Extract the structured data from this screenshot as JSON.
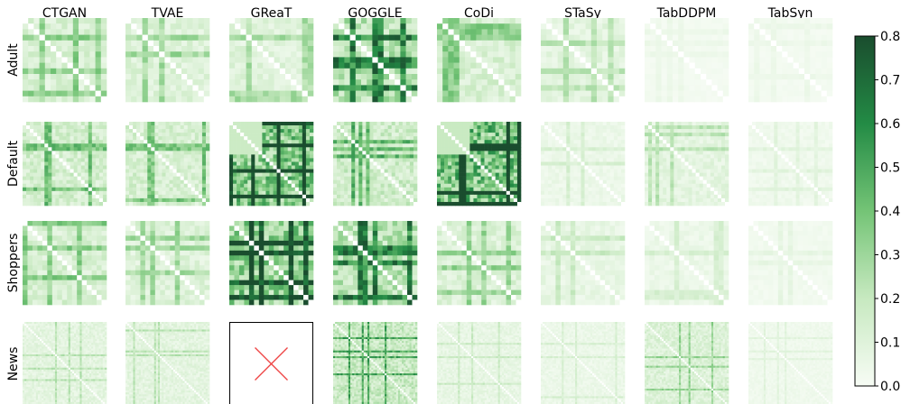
{
  "chart_data": {
    "type": "heatmap",
    "title": "",
    "columns": [
      "CTGAN",
      "TVAE",
      "GReaT",
      "GOGGLE",
      "CoDi",
      "STaSy",
      "TabDDPM",
      "TabSyn"
    ],
    "rows": [
      "Adult",
      "Default",
      "Shoppers",
      "News"
    ],
    "colorbar": {
      "min": 0.0,
      "max": 0.8,
      "ticks": [
        "0.0",
        "0.1",
        "0.2",
        "0.3",
        "0.4",
        "0.5",
        "0.6",
        "0.7",
        "0.8"
      ],
      "colormap": [
        "#f7fcf5",
        "#c7e9c0",
        "#74c476",
        "#238b45",
        "#1a4d2e"
      ]
    },
    "missing_cells": [
      {
        "row": "News",
        "column": "GReaT",
        "mark": "cross",
        "color": "#ee4444"
      }
    ],
    "mean_error": [
      [
        0.15,
        0.13,
        0.12,
        0.28,
        0.16,
        0.1,
        0.02,
        0.02
      ],
      [
        0.18,
        0.17,
        0.45,
        0.2,
        0.48,
        0.06,
        0.1,
        0.04
      ],
      [
        0.16,
        0.13,
        0.4,
        0.28,
        0.14,
        0.08,
        0.06,
        0.03
      ],
      [
        0.1,
        0.1,
        null,
        0.22,
        0.08,
        0.06,
        0.14,
        0.04
      ]
    ]
  }
}
